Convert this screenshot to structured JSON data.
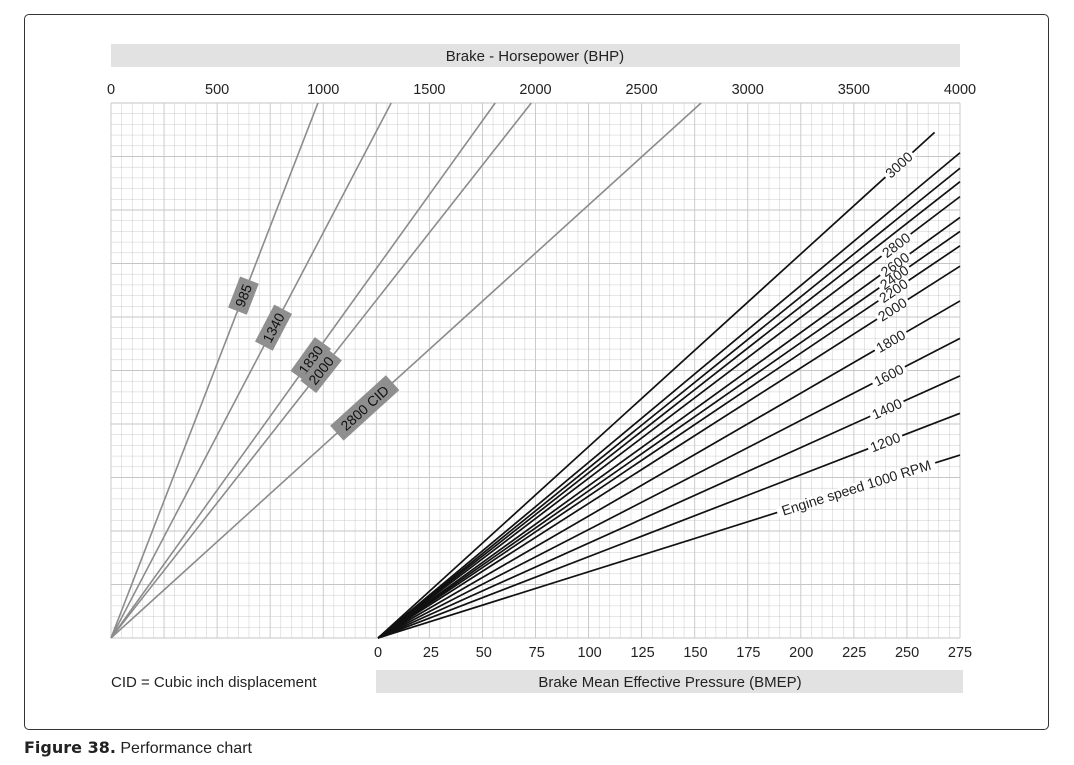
{
  "chart_data": {
    "type": "line",
    "title": "",
    "top_axis": {
      "label": "Brake - Horsepower (BHP)",
      "range": [
        0,
        4000
      ],
      "ticks": [
        "0",
        "500",
        "1000",
        "1500",
        "2000",
        "2500",
        "3000",
        "3500",
        "4000"
      ]
    },
    "bottom_axis": {
      "label": "Brake Mean Effective Pressure (BMEP)",
      "range": [
        0,
        275
      ],
      "ticks": [
        "0",
        "25",
        "50",
        "75",
        "100",
        "125",
        "150",
        "175",
        "200",
        "225",
        "250",
        "275"
      ]
    },
    "grid": true,
    "cid_series": [
      {
        "label": "985",
        "bhp_at_top": 975
      },
      {
        "label": "1340",
        "bhp_at_top": 1320
      },
      {
        "label": "1830",
        "bhp_at_top": 1810
      },
      {
        "label": "2000",
        "bhp_at_top": 1980
      },
      {
        "label": "2800 CID",
        "bhp_at_top": 2780
      }
    ],
    "rpm_series": [
      {
        "label": "Engine speed 1000 RPM",
        "bmep_at_right": 275,
        "y_at_right": 0.342
      },
      {
        "label": "1200",
        "bmep_at_right": 275,
        "y_at_right": 0.42
      },
      {
        "label": "1400",
        "bmep_at_right": 275,
        "y_at_right": 0.49
      },
      {
        "label": "1600",
        "bmep_at_right": 275,
        "y_at_right": 0.56
      },
      {
        "label": "1800",
        "bmep_at_right": 275,
        "y_at_right": 0.63
      },
      {
        "label": "2000",
        "bmep_at_right": 275,
        "y_at_right": 0.695
      },
      {
        "label": "2200",
        "bmep_at_right": 275,
        "y_at_right": 0.733
      },
      {
        "label": "2400",
        "bmep_at_right": 275,
        "y_at_right": 0.76
      },
      {
        "label": "2600",
        "bmep_at_right": 275,
        "y_at_right": 0.786
      },
      {
        "label": "2800",
        "bmep_at_right": 275,
        "y_at_right": 0.825
      },
      {
        "label": "",
        "bmep_at_right": 275,
        "y_at_right": 0.853
      },
      {
        "label": "",
        "bmep_at_right": 275,
        "y_at_right": 0.878
      },
      {
        "label": "",
        "bmep_at_right": 275,
        "y_at_right": 0.907
      },
      {
        "label": "3000",
        "bmep_at_right": 263,
        "y_at_right": 0.945
      }
    ]
  },
  "note": "CID = Cubic inch displacement",
  "caption": {
    "figure_label": "Figure 38.",
    "text": " Performance chart"
  },
  "colors": {
    "grid": "#c6c6c6",
    "cid_lines": "#8c8c8c",
    "rpm_lines": "#111111",
    "band": "#e2e2e2",
    "cid_label_bg": "#8f8f8f"
  }
}
